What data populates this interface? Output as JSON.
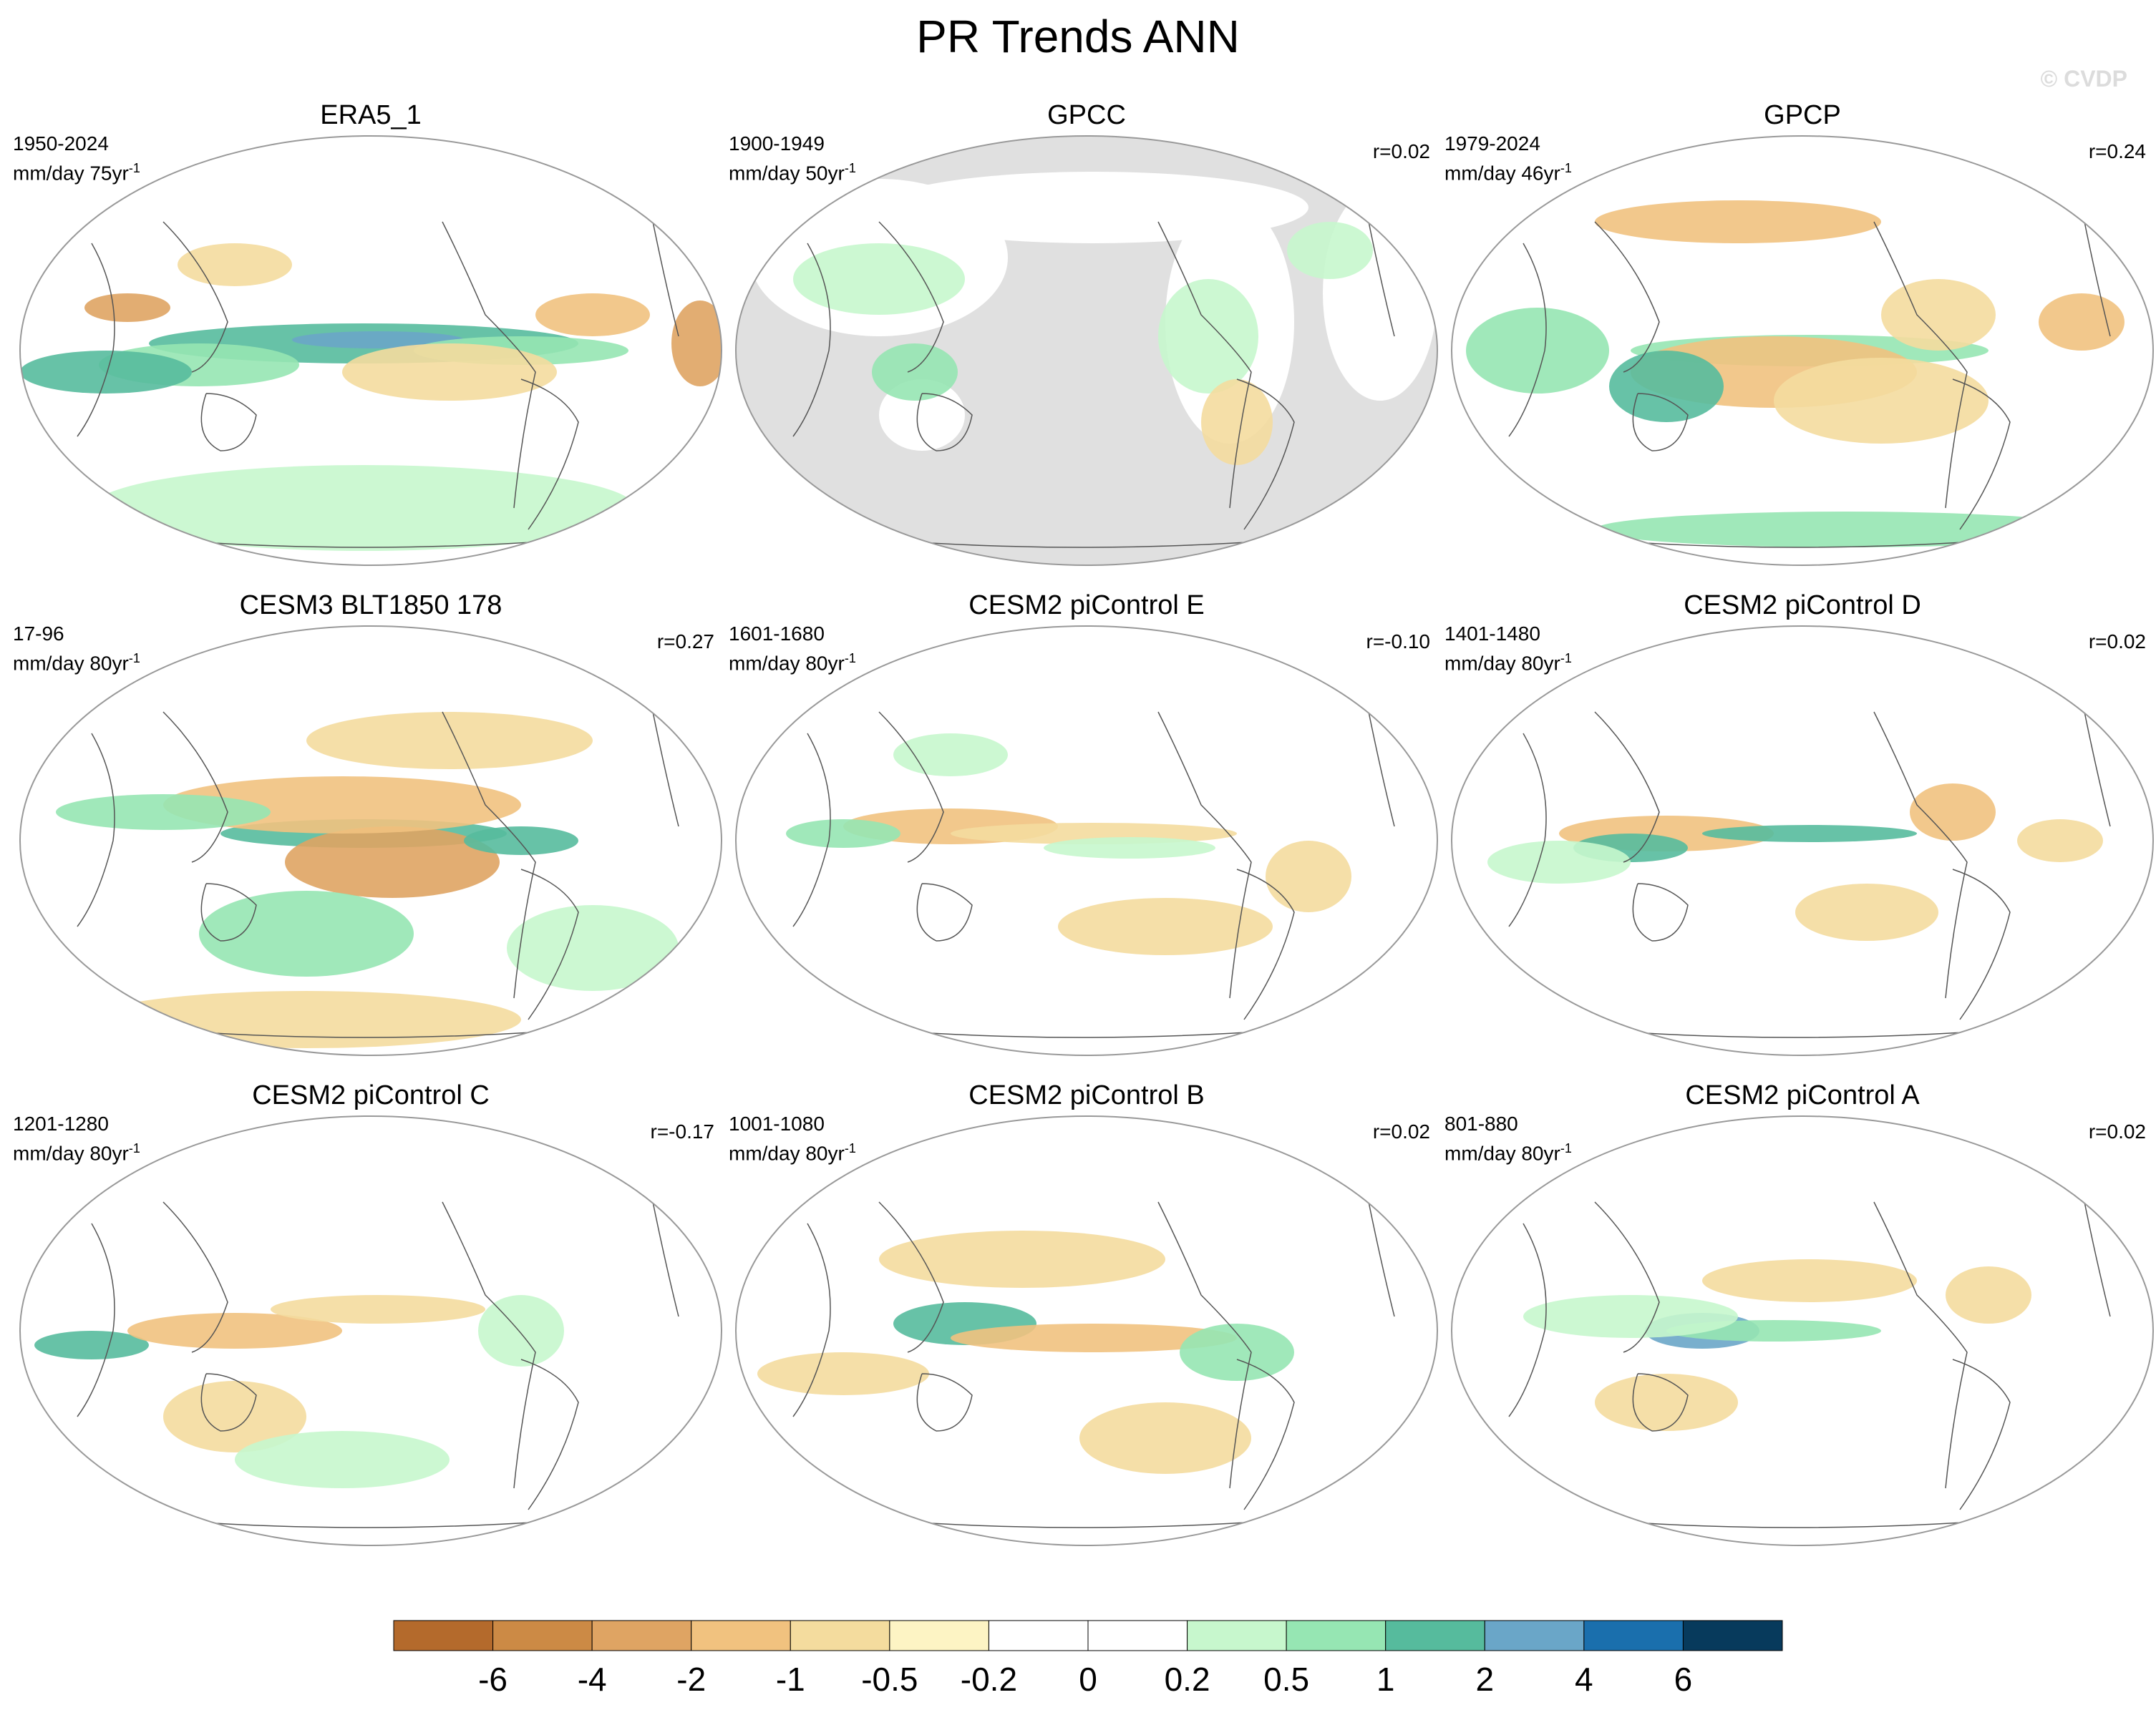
{
  "title": "PR Trends ANN",
  "watermark": "© CVDP",
  "unit_per": "yr",
  "unit_exp": "-1",
  "panels": [
    {
      "name": "ERA5_1",
      "period": "1950-2024",
      "units": "mm/day 75",
      "corr": ""
    },
    {
      "name": "GPCC",
      "period": "1900-1949",
      "units": "mm/day 50",
      "corr": "r=0.02"
    },
    {
      "name": "GPCP",
      "period": "1979-2024",
      "units": "mm/day 46",
      "corr": "r=0.24"
    },
    {
      "name": "CESM3 BLT1850 178",
      "period": "17-96",
      "units": "mm/day 80",
      "corr": "r=0.27"
    },
    {
      "name": "CESM2 piControl E",
      "period": "1601-1680",
      "units": "mm/day 80",
      "corr": "r=-0.10"
    },
    {
      "name": "CESM2 piControl D",
      "period": "1401-1480",
      "units": "mm/day 80",
      "corr": "r=0.02"
    },
    {
      "name": "CESM2 piControl C",
      "period": "1201-1280",
      "units": "mm/day 80",
      "corr": "r=-0.17"
    },
    {
      "name": "CESM2 piControl B",
      "period": "1001-1080",
      "units": "mm/day 80",
      "corr": "r=0.02"
    },
    {
      "name": "CESM2 piControl A",
      "period": "801-880",
      "units": "mm/day 80",
      "corr": "r=0.02"
    }
  ],
  "colorbar": {
    "labels": [
      "-6",
      "-4",
      "-2",
      "-1",
      "-0.5",
      "-0.2",
      "0",
      "0.2",
      "0.5",
      "1",
      "2",
      "4",
      "6"
    ],
    "colors": [
      "#b46a2c",
      "#cc8a45",
      "#dfa463",
      "#f1c27f",
      "#f4dc9e",
      "#fdf4c4",
      "#ffffff",
      "#ffffff",
      "#c7f7cd",
      "#96e6b3",
      "#56bb9d",
      "#6aa6c8",
      "#1a6fad",
      "#073a5c"
    ]
  },
  "colors": {
    "land_mask": "#e0e0e0",
    "coast": "#555555",
    "border": "#999999"
  }
}
